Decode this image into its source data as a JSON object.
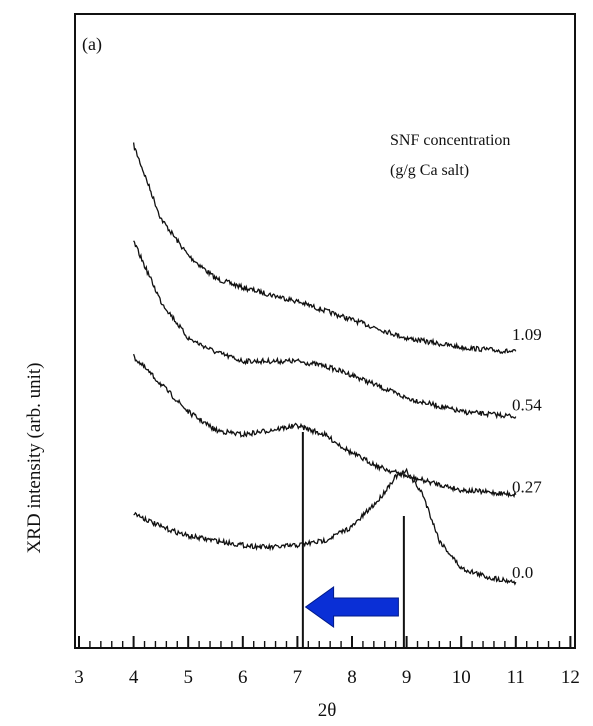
{
  "chart_data": {
    "type": "line",
    "panel_label": "(a)",
    "title": "",
    "xlabel": "2θ",
    "ylabel": "XRD intensity (arb. unit)",
    "xlim": [
      3,
      12
    ],
    "xticks": [
      3,
      4,
      5,
      6,
      7,
      8,
      9,
      10,
      11,
      12
    ],
    "legend_title": [
      "SNF concentration",
      "(g/g Ca salt)"
    ],
    "series": [
      {
        "name": "1.09",
        "x": [
          4.0,
          4.5,
          5.0,
          5.5,
          6.0,
          7.0,
          8.0,
          9.0,
          10.0,
          11.0
        ],
        "y": [
          1.0,
          0.84,
          0.76,
          0.71,
          0.69,
          0.66,
          0.62,
          0.58,
          0.56,
          0.55
        ]
      },
      {
        "name": "0.54",
        "x": [
          4.0,
          4.5,
          5.0,
          5.5,
          6.0,
          6.5,
          7.0,
          7.5,
          8.0,
          9.0,
          10.0,
          11.0
        ],
        "y": [
          0.79,
          0.66,
          0.58,
          0.55,
          0.53,
          0.53,
          0.53,
          0.52,
          0.5,
          0.45,
          0.42,
          0.41
        ]
      },
      {
        "name": "0.27",
        "x": [
          4.0,
          4.5,
          5.0,
          5.5,
          6.0,
          6.5,
          7.0,
          7.5,
          8.0,
          8.5,
          9.0,
          10.0,
          11.0
        ],
        "y": [
          0.54,
          0.48,
          0.42,
          0.38,
          0.37,
          0.38,
          0.39,
          0.37,
          0.33,
          0.3,
          0.28,
          0.25,
          0.24
        ]
      },
      {
        "name": "0.0",
        "x": [
          4.0,
          4.5,
          5.0,
          5.5,
          6.0,
          6.5,
          7.0,
          7.5,
          8.0,
          8.5,
          8.8,
          9.0,
          9.3,
          9.6,
          10.0,
          10.5,
          11.0
        ],
        "y": [
          0.2,
          0.17,
          0.15,
          0.14,
          0.13,
          0.125,
          0.13,
          0.14,
          0.17,
          0.23,
          0.28,
          0.29,
          0.24,
          0.14,
          0.08,
          0.06,
          0.05
        ]
      }
    ],
    "annotations": {
      "vertical_lines_x": [
        7.1,
        8.95
      ],
      "arrow": {
        "from_x": 8.85,
        "to_x": 7.15,
        "color": "#0a2fd6"
      }
    },
    "colors": {
      "line": "#111111",
      "arrow": "#0a2fd6"
    }
  }
}
